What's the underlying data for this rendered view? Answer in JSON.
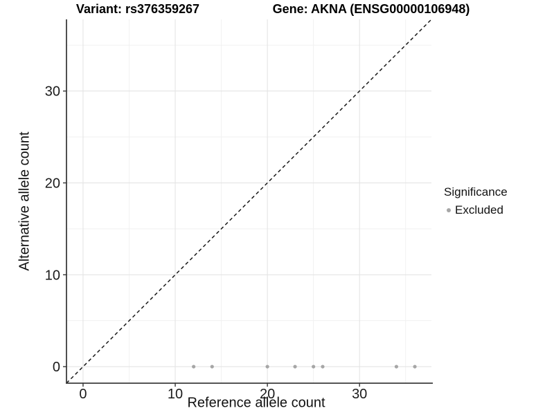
{
  "chart_data": {
    "type": "scatter",
    "title_left": "Variant: rs376359267",
    "title_right": "Gene: AKNA (ENSG00000106948)",
    "xlabel": "Reference allele count",
    "ylabel": "Alternative allele count",
    "xlim": [
      -1.8,
      37.8
    ],
    "ylim": [
      -1.8,
      37.8
    ],
    "x_major_ticks": [
      0,
      10,
      20,
      30
    ],
    "y_major_ticks": [
      0,
      10,
      20,
      30
    ],
    "x_minor_ticks": [
      5,
      15,
      25,
      35
    ],
    "y_minor_ticks": [
      5,
      15,
      25,
      35
    ],
    "grid": "major+minor",
    "identity_line": {
      "equation": "y = x",
      "style": "dashed",
      "color": "#181818"
    },
    "series": [
      {
        "name": "Excluded",
        "marker": "circle",
        "color": "#a6a6a6",
        "points": [
          [
            12,
            0
          ],
          [
            14,
            0
          ],
          [
            20,
            0
          ],
          [
            23,
            0
          ],
          [
            25,
            0
          ],
          [
            26,
            0
          ],
          [
            34,
            0
          ],
          [
            36,
            0
          ]
        ]
      }
    ],
    "legend": {
      "title": "Significance",
      "position": "right",
      "entries": [
        {
          "label": "Excluded",
          "color": "#a6a6a6"
        }
      ]
    }
  },
  "colors": {
    "grid_major": "#e4e4e4",
    "grid_minor": "#f1f1f1",
    "axis_line": "#3c3c3c",
    "tick_mark": "#333333",
    "tick_label": "#1a1a1a",
    "point": "#a6a6a6",
    "identity_line": "#181818"
  }
}
